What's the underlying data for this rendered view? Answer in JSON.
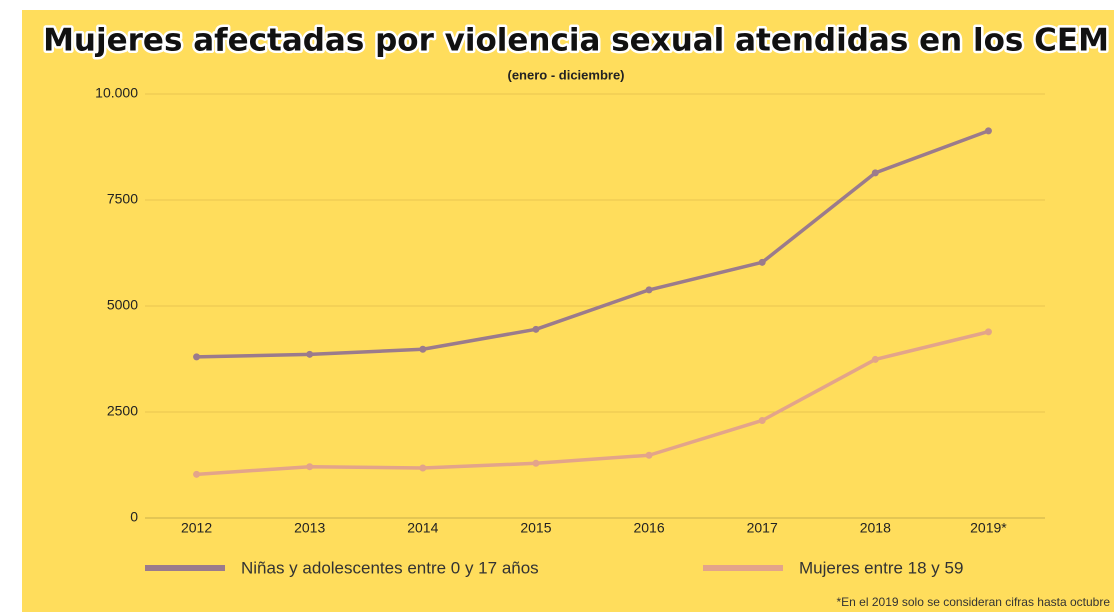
{
  "chart_data": {
    "type": "line",
    "title": "Mujeres afectadas por violencia sexual atendidas en los CEM",
    "subtitle": "(enero - diciembre)",
    "categories": [
      "2012",
      "2013",
      "2014",
      "2015",
      "2016",
      "2017",
      "2018",
      "2019*"
    ],
    "series": [
      {
        "name": "Niñas y adolescentes entre 0 y 17 años",
        "color": "#9b7b8c",
        "values": [
          3800,
          3860,
          3980,
          4450,
          5380,
          6030,
          8140,
          9130
        ]
      },
      {
        "name": "Mujeres entre 18 y 59",
        "color": "#e3a48a",
        "values": [
          1030,
          1210,
          1180,
          1290,
          1480,
          2300,
          3740,
          4390
        ]
      }
    ],
    "ylim": [
      0,
      10000
    ],
    "yticks": [
      0,
      2500,
      5000,
      7500,
      {
        "value": 10000,
        "label": "10.000"
      }
    ],
    "grid": true,
    "legend": "bottom",
    "footnote": "*En el 2019 solo se consideran cifras hasta octubre"
  }
}
